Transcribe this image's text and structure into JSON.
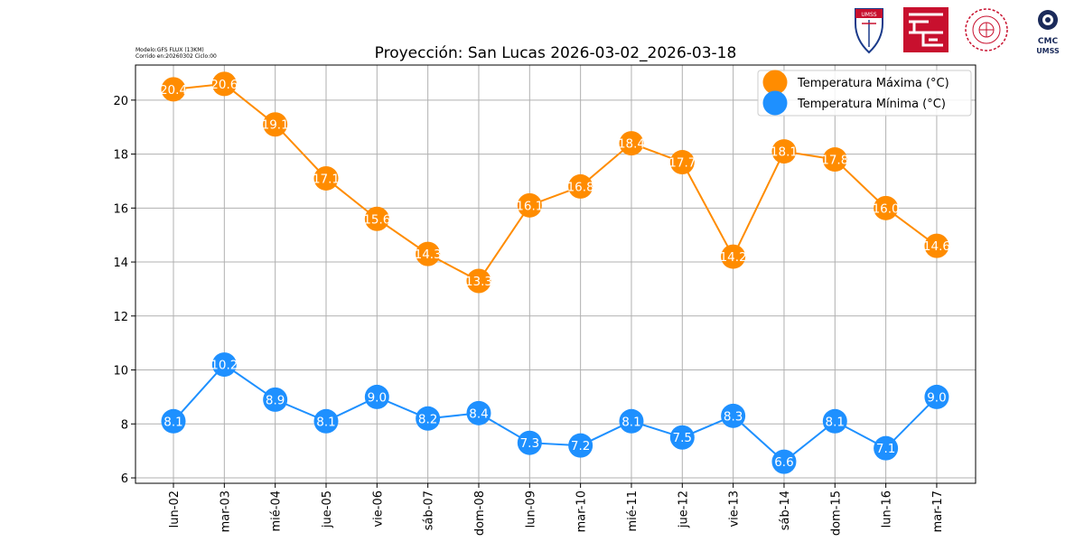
{
  "model_info": {
    "line1": "Modelo:GFS FLUX (13KM)",
    "line2": "Corrido en:20260302 Ciclo:00"
  },
  "logos": {
    "umss_shield_text": "UMSS",
    "cmc_text": "CMC",
    "cmc_sub": "UMSS"
  },
  "chart_data": {
    "type": "line",
    "title": "Proyección: San Lucas 2026-03-02_2026-03-18",
    "xlabel": "",
    "ylabel": "",
    "categories": [
      "lun-02",
      "mar-03",
      "mié-04",
      "jue-05",
      "vie-06",
      "sáb-07",
      "dom-08",
      "lun-09",
      "mar-10",
      "mié-11",
      "jue-12",
      "vie-13",
      "sáb-14",
      "dom-15",
      "lun-16",
      "mar-17"
    ],
    "ylim": [
      5.8,
      21.3
    ],
    "yticks": [
      6,
      8,
      10,
      12,
      14,
      16,
      18,
      20
    ],
    "grid": true,
    "legend_position": "top-right",
    "series": [
      {
        "name": "Temperatura Máxima  (°C)",
        "color": "#ff8c00",
        "values": [
          20.4,
          20.6,
          19.1,
          17.1,
          15.6,
          14.3,
          13.3,
          16.1,
          16.8,
          18.4,
          17.7,
          14.2,
          18.1,
          17.8,
          16.0,
          14.6
        ],
        "labels": [
          "20.4",
          "20.6",
          "19.1",
          "17.1",
          "15.6",
          "14.3",
          "13.3",
          "16.1",
          "16.8",
          "18.4",
          "17.7",
          "14.2",
          "18.1",
          "17.8",
          "16.0",
          "14.6"
        ]
      },
      {
        "name": "Temperatura Mínima  (°C)",
        "color": "#1e90ff",
        "values": [
          8.1,
          10.2,
          8.9,
          8.1,
          9.0,
          8.2,
          8.4,
          7.3,
          7.2,
          8.1,
          7.5,
          8.3,
          6.6,
          8.1,
          7.1,
          9.0
        ],
        "labels": [
          "8.1",
          "10.2",
          "8.9",
          "8.1",
          "9.0",
          "8.2",
          "8.4",
          "7.3",
          "7.2",
          "8.1",
          "7.5",
          "8.3",
          "6.6",
          "8.1",
          "7.1",
          "9.0"
        ]
      }
    ]
  }
}
